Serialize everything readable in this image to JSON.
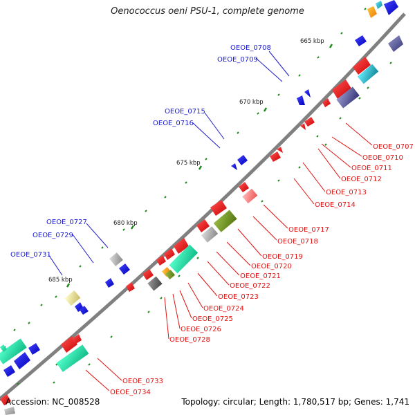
{
  "title": "Oenococcus oeni PSU-1, complete genome",
  "footer": {
    "accession": "Accession: NC_008528",
    "topology": "Topology: circular; Length: 1,780,517 bp; Genes: 1,741"
  },
  "colors": {
    "backbone": "#8a8a8a",
    "forward_label": "#1a1acc",
    "reverse_label": "#e01010",
    "tick": "#1a8a1a",
    "gene_red": "#ee1111",
    "gene_blue": "#1111ee",
    "gene_aqua": "#22ddaa",
    "gene_olive": "#7a9a22",
    "gene_gray": "#aaaaaa"
  },
  "kbp_markers": [
    {
      "kbp": 665,
      "label": "665 kbp"
    },
    {
      "kbp": 670,
      "label": "670 kbp"
    },
    {
      "kbp": 675,
      "label": "675 kbp"
    },
    {
      "kbp": 680,
      "label": "680 kbp"
    },
    {
      "kbp": 685,
      "label": "685 kbp"
    }
  ],
  "forward_labels": [
    "OEOE_0708",
    "OEOE_0709",
    "OEOE_0715",
    "OEOE_0716",
    "OEOE_0727",
    "OEOE_0729",
    "OEOE_0731"
  ],
  "reverse_labels": [
    "OEOE_0707",
    "OEOE_0710",
    "OEOE_0711",
    "OEOE_0712",
    "OEOE_0713",
    "OEOE_0714",
    "OEOE_0717",
    "OEOE_0718",
    "OEOE_0719",
    "OEOE_0720",
    "OEOE_0721",
    "OEOE_0722",
    "OEOE_0723",
    "OEOE_0724",
    "OEOE_0725",
    "OEOE_0726",
    "OEOE_0728",
    "OEOE_0733",
    "OEOE_0734"
  ]
}
